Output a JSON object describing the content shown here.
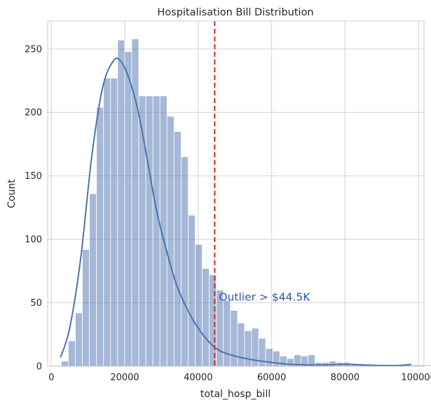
{
  "chart_data": {
    "type": "histogram",
    "title": "Hospitalisation Bill Distribution",
    "xlabel": "total_hosp_bill",
    "ylabel": "Count",
    "xlim": [
      -1000,
      101500
    ],
    "ylim": [
      0,
      272
    ],
    "xticks": [
      0,
      20000,
      40000,
      60000,
      80000,
      100000
    ],
    "yticks": [
      0,
      50,
      100,
      150,
      200,
      250
    ],
    "grid": true,
    "bar_color": "#4c72b0",
    "bar_opacity": 0.5,
    "kde_color": "#4c72b0",
    "bin_start": 2700,
    "bin_width": 1920,
    "counts": [
      4,
      20,
      42,
      92,
      136,
      204,
      227,
      227,
      257,
      248,
      258,
      213,
      213,
      213,
      213,
      197,
      185,
      165,
      119,
      96,
      77,
      72,
      60,
      52,
      44,
      34,
      28,
      30,
      22,
      14,
      12,
      8,
      6,
      9,
      8,
      9,
      3,
      3,
      4,
      3,
      3,
      2,
      2,
      1,
      1,
      1,
      1,
      1,
      1,
      1,
      1,
      1,
      1,
      1,
      1,
      1,
      1,
      1,
      1,
      1,
      1,
      1,
      1,
      1,
      1,
      1,
      1,
      1,
      1,
      1,
      1,
      1,
      1,
      1,
      1,
      1,
      1,
      1,
      1,
      1,
      1,
      1,
      1,
      1,
      1,
      1,
      1,
      1,
      1,
      2,
      1,
      1
    ],
    "kde": {
      "x": [
        2500,
        5000,
        8000,
        11000,
        14000,
        17000,
        19000,
        21000,
        23500,
        26000,
        28500,
        31000,
        34000,
        37000,
        40000,
        43000,
        46000,
        50000,
        55000,
        60000,
        65000,
        70000,
        75000,
        80000,
        85000,
        90000,
        95000,
        98000
      ],
      "y": [
        7,
        30,
        85,
        165,
        220,
        241,
        240,
        228,
        203,
        165,
        125,
        95,
        65,
        45,
        30,
        19,
        12,
        8,
        5,
        3,
        1.5,
        1,
        1,
        1.5,
        1,
        0.6,
        0.7,
        1.5
      ]
    },
    "reference_line": {
      "x": 44500,
      "style": "dashed",
      "color": "#d62728",
      "label": "Outlier > $44.5K",
      "label_color": "#3154a4",
      "label_y": 55
    }
  }
}
